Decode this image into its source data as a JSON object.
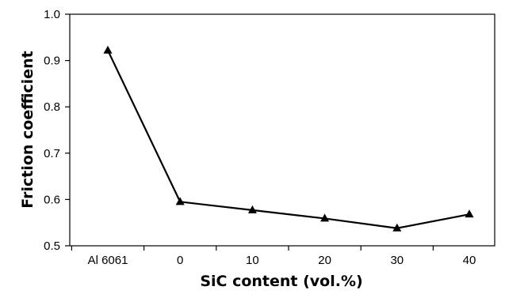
{
  "chart_data": {
    "type": "line",
    "title": "",
    "xlabel": "SiC content (vol.%)",
    "ylabel": "Friction coefficient",
    "categories": [
      "Al 6061",
      "0",
      "10",
      "20",
      "30",
      "40"
    ],
    "series": [
      {
        "values": [
          0.922,
          0.595,
          0.577,
          0.559,
          0.538,
          0.568
        ],
        "marker": "triangle",
        "color": "#000000"
      }
    ],
    "ylim": [
      0.5,
      1.0
    ],
    "yticks": [
      "0.5",
      "0.6",
      "0.7",
      "0.8",
      "0.9",
      "1.0"
    ],
    "grid": false,
    "legend": "none"
  }
}
